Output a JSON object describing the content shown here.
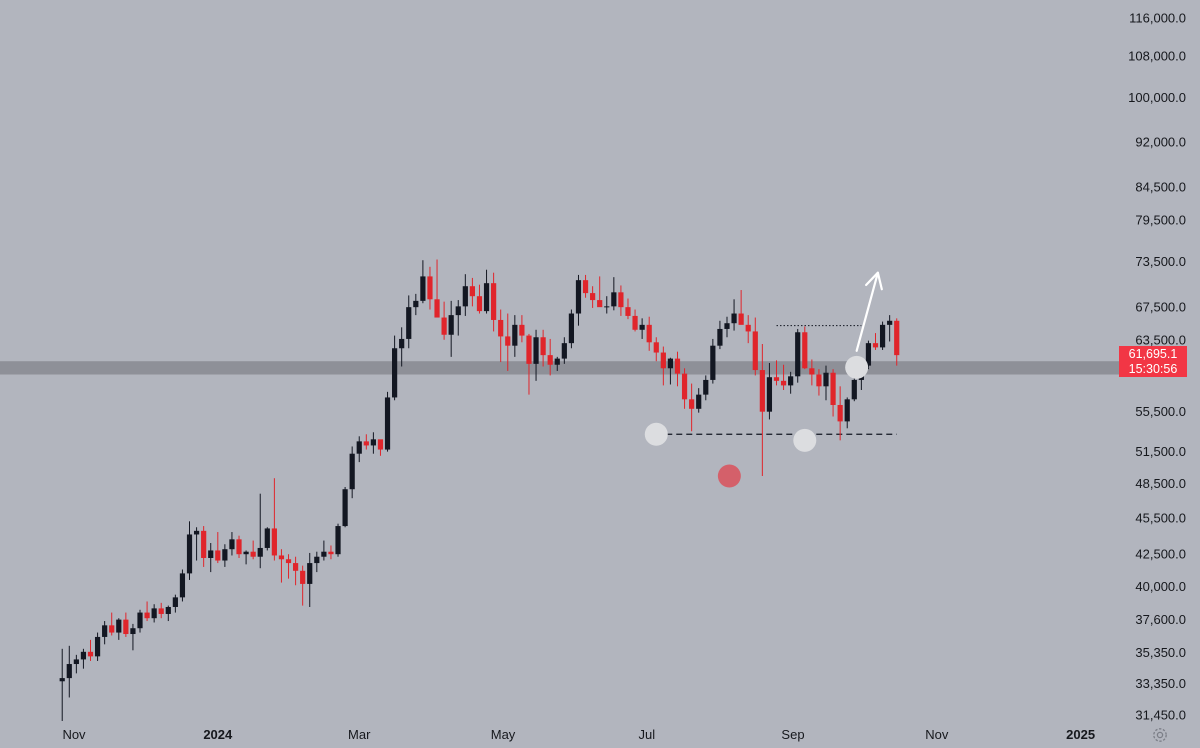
{
  "chart_data": {
    "type": "candlestick",
    "title": "",
    "xlabel": "",
    "ylabel": "",
    "y_scale": "log",
    "ylim": [
      30800,
      118000
    ],
    "colors": {
      "background": "#b2b5be",
      "up": "#131722",
      "down": "#e0252b",
      "zone": "#8e9098",
      "marker_light": "#dcdde0",
      "marker_red": "#d4606a",
      "badge": "#f23645"
    },
    "y_ticks": [
      116000,
      108000,
      100000,
      92000,
      84500,
      79500,
      73500,
      67500,
      63500,
      55500,
      51500,
      48500,
      45500,
      42500,
      40000,
      37600,
      35350,
      33350,
      31450
    ],
    "y_tick_labels": [
      "116,000.0",
      "108,000.0",
      "100,000.0",
      "92,000.0",
      "84,500.0",
      "79,500.0",
      "73,500.0",
      "67,500.0",
      "63,500.0",
      "55,500.0",
      "51,500.0",
      "48,500.0",
      "45,500.0",
      "42,500.0",
      "40,000.0",
      "37,600.0",
      "35,350.0",
      "33,350.0",
      "31,450.0"
    ],
    "x_labels": [
      {
        "label": "Nov",
        "date": "2023-11-01"
      },
      {
        "label": "2024",
        "date": "2024-01-01",
        "bold": true
      },
      {
        "label": "Mar",
        "date": "2024-03-01"
      },
      {
        "label": "May",
        "date": "2024-05-01"
      },
      {
        "label": "Jul",
        "date": "2024-07-01"
      },
      {
        "label": "Sep",
        "date": "2024-09-01"
      },
      {
        "label": "Nov",
        "date": "2024-11-01"
      },
      {
        "label": "2025",
        "date": "2025-01-01",
        "bold": true
      }
    ],
    "last_price": "61,695.1",
    "countdown": "15:30:56",
    "support_zone": [
      59500,
      61000
    ],
    "neckline": {
      "price": 53200,
      "from": "2024-07-05",
      "to": "2024-10-15"
    },
    "range_high": {
      "price": 65200,
      "from": "2024-08-25",
      "to": "2024-09-30"
    },
    "markers": [
      {
        "date": "2024-07-05",
        "price": 53200,
        "color": "light"
      },
      {
        "date": "2024-08-05",
        "price": 49200,
        "color": "red"
      },
      {
        "date": "2024-09-06",
        "price": 52600,
        "color": "light"
      },
      {
        "date": "2024-09-28",
        "price": 60300,
        "color": "light"
      }
    ],
    "arrow": {
      "from": {
        "date": "2024-09-28",
        "price": 62200
      },
      "to": {
        "date": "2024-10-07",
        "price": 72000
      }
    },
    "ohlc_start": "2023-10-27",
    "ohlc_step_days": 3,
    "ohlc": [
      [
        33500,
        35600,
        31100,
        33700
      ],
      [
        33700,
        35800,
        32500,
        34600
      ],
      [
        34600,
        35200,
        34000,
        34900
      ],
      [
        34900,
        35600,
        34300,
        35400
      ],
      [
        35400,
        36200,
        34800,
        35100
      ],
      [
        35100,
        36700,
        34800,
        36400
      ],
      [
        36400,
        37500,
        35900,
        37200
      ],
      [
        37200,
        38100,
        36500,
        36700
      ],
      [
        36700,
        37700,
        36200,
        37600
      ],
      [
        37600,
        38100,
        36400,
        36600
      ],
      [
        36600,
        37300,
        35500,
        37000
      ],
      [
        37000,
        38300,
        36700,
        38100
      ],
      [
        38100,
        38900,
        37500,
        37700
      ],
      [
        37700,
        38700,
        37400,
        38400
      ],
      [
        38400,
        38800,
        37700,
        38000
      ],
      [
        38000,
        38600,
        37500,
        38500
      ],
      [
        38500,
        39400,
        38100,
        39200
      ],
      [
        39200,
        41300,
        38900,
        41000
      ],
      [
        41000,
        45200,
        40500,
        44100
      ],
      [
        44100,
        44700,
        42000,
        44400
      ],
      [
        44400,
        44800,
        41500,
        42200
      ],
      [
        42200,
        43400,
        41100,
        42800
      ],
      [
        42800,
        44300,
        41800,
        42000
      ],
      [
        42000,
        43300,
        41500,
        42900
      ],
      [
        42900,
        44300,
        42400,
        43700
      ],
      [
        43700,
        44000,
        42200,
        42500
      ],
      [
        42500,
        42800,
        41700,
        42700
      ],
      [
        42700,
        43600,
        42100,
        42300
      ],
      [
        42300,
        47600,
        41400,
        43000
      ],
      [
        43000,
        44700,
        42800,
        44600
      ],
      [
        44600,
        49000,
        42000,
        42400
      ],
      [
        42400,
        42900,
        40300,
        42100
      ],
      [
        42100,
        42500,
        40600,
        41800
      ],
      [
        41800,
        42300,
        40100,
        41200
      ],
      [
        41200,
        41600,
        38600,
        40200
      ],
      [
        40200,
        42600,
        38500,
        41800
      ],
      [
        41800,
        42700,
        41100,
        42300
      ],
      [
        42300,
        43600,
        42000,
        42700
      ],
      [
        42700,
        43200,
        42100,
        42500
      ],
      [
        42500,
        45000,
        42300,
        44800
      ],
      [
        44800,
        48200,
        44700,
        48000
      ],
      [
        48000,
        52000,
        47200,
        51300
      ],
      [
        51300,
        53000,
        50500,
        52500
      ],
      [
        52500,
        53200,
        51700,
        52100
      ],
      [
        52100,
        53400,
        51300,
        52700
      ],
      [
        52700,
        52500,
        51100,
        51700
      ],
      [
        51700,
        57600,
        51500,
        57000
      ],
      [
        57000,
        64000,
        56700,
        62500
      ],
      [
        62500,
        65000,
        60400,
        63600
      ],
      [
        63600,
        69000,
        62500,
        67500
      ],
      [
        67500,
        69200,
        66500,
        68300
      ],
      [
        68300,
        73700,
        68000,
        71500
      ],
      [
        71500,
        72800,
        67200,
        68500
      ],
      [
        68500,
        73800,
        66500,
        66200
      ],
      [
        66200,
        68200,
        63500,
        64100
      ],
      [
        64100,
        68300,
        61500,
        66500
      ],
      [
        66500,
        68400,
        64000,
        67600
      ],
      [
        67600,
        71800,
        66400,
        70200
      ],
      [
        70200,
        71300,
        67600,
        68900
      ],
      [
        68900,
        70400,
        66700,
        67000
      ],
      [
        67000,
        72400,
        66700,
        70600
      ],
      [
        70600,
        72000,
        64500,
        65900
      ],
      [
        65900,
        67200,
        60900,
        63900
      ],
      [
        63900,
        66700,
        59900,
        62800
      ],
      [
        62800,
        66500,
        61500,
        65300
      ],
      [
        65300,
        66500,
        63200,
        64000
      ],
      [
        64000,
        64200,
        57300,
        60700
      ],
      [
        60700,
        64700,
        58800,
        63800
      ],
      [
        63800,
        64700,
        60400,
        61700
      ],
      [
        61700,
        63600,
        59400,
        60600
      ],
      [
        60600,
        61500,
        59900,
        61300
      ],
      [
        61300,
        63800,
        60700,
        63100
      ],
      [
        63100,
        67200,
        62500,
        66700
      ],
      [
        66700,
        71700,
        65200,
        71000
      ],
      [
        71000,
        71700,
        68700,
        69300
      ],
      [
        69300,
        70200,
        67400,
        68400
      ],
      [
        68400,
        71500,
        67800,
        67500
      ],
      [
        67500,
        68900,
        66700,
        67600
      ],
      [
        67600,
        71400,
        67100,
        69400
      ],
      [
        69400,
        70300,
        66400,
        67500
      ],
      [
        67500,
        68600,
        66000,
        66400
      ],
      [
        66400,
        67200,
        64500,
        64700
      ],
      [
        64700,
        66100,
        63600,
        65300
      ],
      [
        65300,
        66300,
        62200,
        63200
      ],
      [
        63200,
        63800,
        61000,
        62000
      ],
      [
        62000,
        62700,
        58300,
        60200
      ],
      [
        60200,
        61400,
        58400,
        61300
      ],
      [
        61300,
        62100,
        58200,
        59600
      ],
      [
        59600,
        60200,
        55800,
        56800
      ],
      [
        56800,
        58500,
        53500,
        55800
      ],
      [
        55800,
        58000,
        55400,
        57300
      ],
      [
        57300,
        59400,
        56700,
        58900
      ],
      [
        58900,
        63600,
        58500,
        62800
      ],
      [
        62800,
        65800,
        62400,
        64800
      ],
      [
        64800,
        66300,
        63800,
        65500
      ],
      [
        65500,
        68500,
        64600,
        66700
      ],
      [
        66700,
        69700,
        65500,
        65300
      ],
      [
        65300,
        66500,
        63100,
        64500
      ],
      [
        64500,
        66200,
        59400,
        60000
      ],
      [
        60000,
        63000,
        49200,
        55500
      ],
      [
        55500,
        60800,
        54700,
        59200
      ],
      [
        59200,
        61100,
        58300,
        58800
      ],
      [
        58800,
        60600,
        57800,
        58300
      ],
      [
        58300,
        59800,
        57400,
        59300
      ],
      [
        59300,
        64800,
        58600,
        64400
      ],
      [
        64400,
        65100,
        60100,
        60200
      ],
      [
        60200,
        61200,
        58300,
        59500
      ],
      [
        59500,
        60100,
        57200,
        58200
      ],
      [
        58200,
        60500,
        56700,
        59700
      ],
      [
        59700,
        60100,
        55000,
        56200
      ],
      [
        56200,
        58200,
        52600,
        54500
      ],
      [
        54500,
        57000,
        53800,
        56800
      ],
      [
        56800,
        59100,
        56600,
        58900
      ],
      [
        58900,
        60700,
        57800,
        60500
      ],
      [
        60500,
        63400,
        60100,
        63100
      ],
      [
        63100,
        64300,
        62300,
        62600
      ],
      [
        62600,
        65700,
        62300,
        65300
      ],
      [
        65300,
        66500,
        63300,
        65800
      ],
      [
        65800,
        66100,
        60500,
        61700
      ]
    ]
  }
}
